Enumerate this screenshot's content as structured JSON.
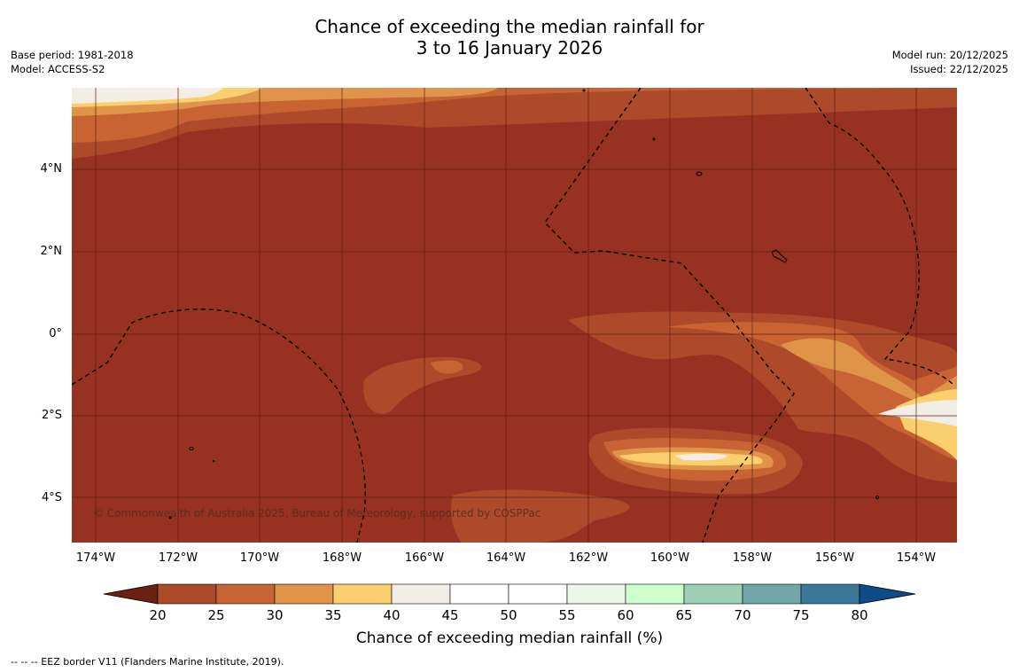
{
  "title": {
    "line1": "Chance of exceeding the median rainfall for",
    "line2": "3 to 16 January 2026"
  },
  "meta_left": {
    "base_period": "Base period: 1981-2018",
    "model": "Model: ACCESS-S2"
  },
  "meta_right": {
    "model_run": "Model run: 20/12/2025",
    "issued": "Issued: 22/12/2025"
  },
  "copyright": "© Commonwealth of Australia 2025, Bureau of Meteorology, supported by COSPPac",
  "footnote": "--  --  -- EEZ border V11 (Flanders Marine Institute, 2019).",
  "map": {
    "lat_labels": [
      "4°N",
      "2°N",
      "0°",
      "2°S",
      "4°S"
    ],
    "lon_labels": [
      "174°W",
      "172°W",
      "170°W",
      "168°W",
      "166°W",
      "164°W",
      "162°W",
      "160°W",
      "158°W",
      "156°W",
      "154°W"
    ],
    "background_color": "#973121"
  },
  "colorbar": {
    "title": "Chance of exceeding median rainfall (%)",
    "ticks": [
      "20",
      "25",
      "30",
      "35",
      "40",
      "45",
      "50",
      "55",
      "60",
      "65",
      "70",
      "75",
      "80"
    ],
    "colors": [
      "#973121",
      "#ad4a2a",
      "#c86433",
      "#e0944a",
      "#fccf6e",
      "#f2ede7",
      "#ffffff",
      "#ffffff",
      "#ecf7ea",
      "#ccffcc",
      "#9ed0b8",
      "#72a6a8",
      "#3c7898",
      "#0f4c87"
    ]
  }
}
